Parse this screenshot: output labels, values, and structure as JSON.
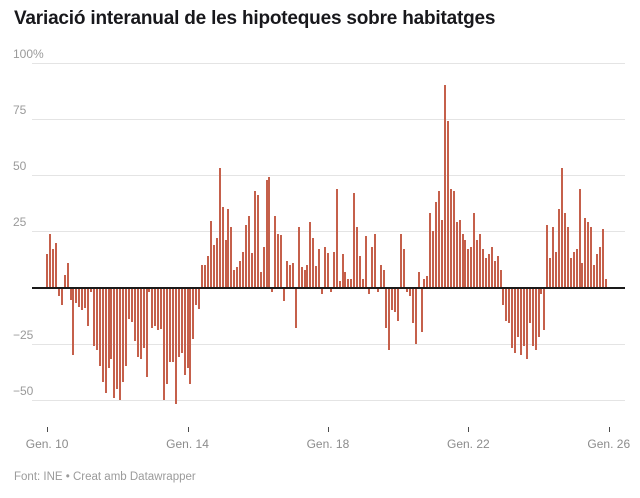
{
  "header": {
    "title": "Variació interanual de les hipoteques sobre habitatges"
  },
  "footer": {
    "text": "Font: INE • Creat amb Datawrapper"
  },
  "chart_data": {
    "type": "bar",
    "title": "Variació interanual de les hipoteques sobre habitatges",
    "unit": "%",
    "x_start": "2010-01",
    "x_freq": "monthly",
    "ylim": [
      -60,
      100
    ],
    "grid": "horizontal",
    "bar_color": "#c5604b",
    "values": [
      15,
      24,
      17,
      20,
      -4,
      -8,
      5.5,
      11,
      -5.5,
      -30,
      -7,
      -8.5,
      -10,
      -9,
      -17,
      -2,
      -26,
      -28,
      -35,
      -42,
      -47,
      -36,
      -32,
      -49,
      -45,
      -50,
      -42,
      -35,
      -14,
      -15.5,
      -24,
      -31,
      -32,
      -27,
      -40,
      -2,
      -18,
      -17,
      -19,
      -18.5,
      -50,
      -43,
      -33,
      -33,
      -52,
      -31,
      -29,
      -39,
      -36,
      -43,
      -23,
      -8,
      -9.5,
      10,
      10,
      14,
      29.5,
      19,
      22,
      53,
      36,
      21,
      35,
      27,
      8,
      9,
      12,
      16,
      28,
      32,
      15.5,
      43,
      41,
      7,
      18,
      48,
      49,
      -2,
      32,
      24,
      23.5,
      -6,
      12,
      10,
      11,
      -18,
      27,
      9,
      8,
      10,
      29,
      22,
      9.5,
      17,
      -3,
      18,
      15.5,
      -2,
      16,
      44,
      3,
      15,
      7,
      4,
      4,
      42,
      27,
      14,
      4,
      23,
      -3,
      18,
      24,
      -2,
      10,
      8,
      -18,
      -28,
      -10,
      -11,
      -15,
      24,
      17,
      -2,
      -4,
      -16,
      -25,
      7,
      -20,
      4,
      5,
      33,
      25,
      38,
      43,
      30,
      90,
      74,
      44,
      43,
      29,
      30,
      24,
      21,
      17,
      18,
      33,
      21,
      24,
      17,
      13,
      15,
      18,
      12,
      14,
      8,
      -8,
      -15,
      -16,
      -27,
      -29,
      -22,
      -30,
      -26,
      -32,
      -16,
      -26,
      -28,
      -22,
      -3,
      -19,
      28,
      13,
      27,
      16,
      35,
      53,
      33,
      27,
      13,
      16,
      17,
      44,
      11,
      31,
      29,
      27,
      10,
      15,
      18,
      26,
      4
    ],
    "y_ticks": [
      {
        "label": "100%",
        "value": 100
      },
      {
        "label": "75",
        "value": 75
      },
      {
        "label": "50",
        "value": 50
      },
      {
        "label": "25",
        "value": 25
      },
      {
        "label": "−25",
        "value": -25
      },
      {
        "label": "−50",
        "value": -50
      }
    ],
    "x_ticks": [
      {
        "label": "Gen. 10",
        "month_index": 0
      },
      {
        "label": "Gen. 14",
        "month_index": 48
      },
      {
        "label": "Gen. 18",
        "month_index": 96
      },
      {
        "label": "Gen. 22",
        "month_index": 144
      },
      {
        "label": "Gen. 26",
        "month_index": 192
      }
    ]
  }
}
